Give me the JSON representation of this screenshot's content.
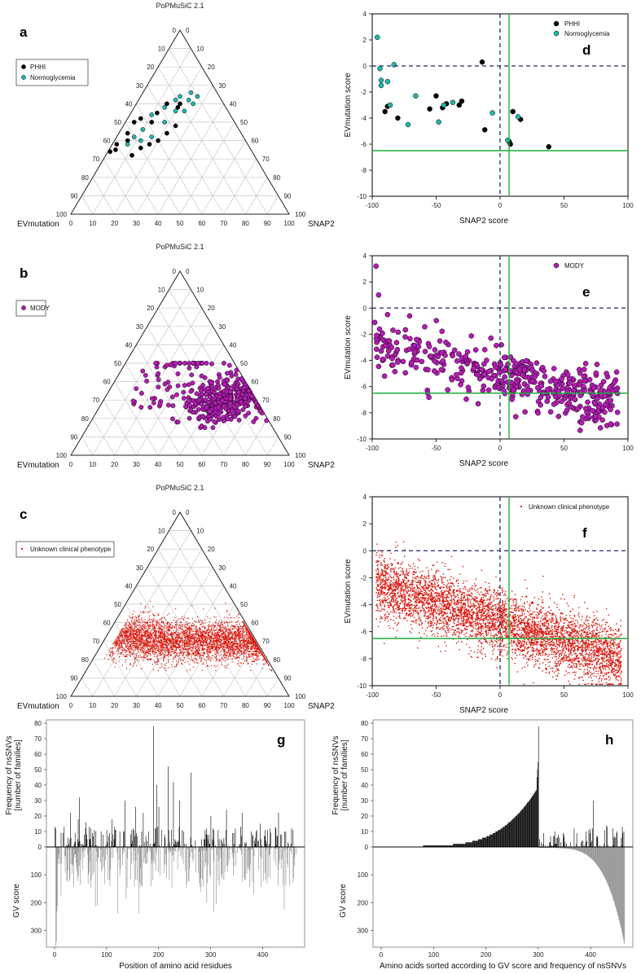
{
  "figure": {
    "panels": [
      "a",
      "b",
      "c",
      "d",
      "e",
      "f",
      "g",
      "h"
    ]
  },
  "colors": {
    "phhi": "#000000",
    "normoglycemia": "#22b5ad",
    "mody": "#b21db2",
    "unknown": "#d9150b",
    "green_line": "#1fae3b",
    "dashed_line": "#1f2a6b",
    "freq_bars": "#000000",
    "gv_bars": "#8c8c8c"
  },
  "chart_data": [
    {
      "id": "a",
      "type": "scatter",
      "subtype": "ternary",
      "panel_letter": "a",
      "title": "PoPMuSiC 2.1",
      "axis_labels": {
        "left": "EVmutation",
        "right": "SNAP2"
      },
      "ticks": [
        "0",
        "10",
        "20",
        "30",
        "40",
        "50",
        "60",
        "70",
        "80",
        "90",
        "100"
      ],
      "legend": [
        {
          "label": "PHHI",
          "color_key": "phhi"
        },
        {
          "label": "Normoglycemia",
          "color_key": "normoglycemia"
        }
      ],
      "series": [
        {
          "name": "PHHI",
          "points": [
            [
              20,
              60,
              20
            ],
            [
              22,
              58,
              20
            ],
            [
              26,
              60,
              14
            ],
            [
              33,
              55,
              12
            ],
            [
              38,
              50,
              12
            ],
            [
              42,
              52,
              6
            ],
            [
              46,
              50,
              4
            ],
            [
              52,
              44,
              4
            ],
            [
              60,
              38,
              2
            ],
            [
              65,
              34,
              1
            ],
            [
              45,
              38,
              17
            ],
            [
              28,
              48,
              24
            ],
            [
              34,
              44,
              22
            ],
            [
              54,
              40,
              6
            ],
            [
              62,
              35,
              3
            ],
            [
              56,
              32,
              12
            ],
            [
              50,
              36,
              14
            ],
            [
              40,
              40,
              20
            ]
          ]
        },
        {
          "name": "Normoglycemia",
          "points": [
            [
              10,
              64,
              26
            ],
            [
              12,
              66,
              22
            ],
            [
              15,
              62,
              23
            ],
            [
              18,
              64,
              18
            ],
            [
              21,
              62,
              17
            ],
            [
              28,
              58,
              14
            ],
            [
              36,
              54,
              10
            ],
            [
              44,
              46,
              10
            ],
            [
              50,
              42,
              8
            ],
            [
              55,
              38,
              7
            ],
            [
              14,
              60,
              26
            ],
            [
              24,
              56,
              20
            ],
            [
              32,
              50,
              18
            ],
            [
              42,
              42,
              16
            ],
            [
              48,
              40,
              12
            ],
            [
              20,
              56,
              24
            ]
          ]
        }
      ]
    },
    {
      "id": "b",
      "type": "scatter",
      "subtype": "ternary",
      "panel_letter": "b",
      "title": "PoPMuSiC 2.1",
      "axis_labels": {
        "left": "EVmutation",
        "right": "SNAP2"
      },
      "ticks": [
        "0",
        "10",
        "20",
        "30",
        "40",
        "50",
        "60",
        "70",
        "80",
        "90",
        "100"
      ],
      "legend": [
        {
          "label": "MODY",
          "color_key": "mody"
        }
      ],
      "generated": {
        "count": 420,
        "seed": 7,
        "mean_right": [
          58,
          30
        ],
        "sd": [
          9,
          6
        ],
        "tail_fraction": 0.18
      }
    },
    {
      "id": "c",
      "type": "scatter",
      "subtype": "ternary",
      "panel_letter": "c",
      "title": "PoPMuSiC 2.1",
      "axis_labels": {
        "left": "EVmutation",
        "right": "SNAP2"
      },
      "ticks": [
        "0",
        "10",
        "20",
        "30",
        "40",
        "50",
        "60",
        "70",
        "80",
        "90",
        "100"
      ],
      "legend": [
        {
          "label": "Unknown clinical phenotype",
          "color_key": "unknown"
        }
      ],
      "generated": {
        "count": 5200,
        "seed": 11
      }
    },
    {
      "id": "d",
      "type": "scatter",
      "panel_letter": "d",
      "xlabel": "SNAP2 score",
      "ylabel": "EVmutation score",
      "xlim": [
        -100,
        100
      ],
      "ylim": [
        -10,
        4
      ],
      "xticks": [
        -100,
        -50,
        0,
        50,
        100
      ],
      "yticks": [
        4,
        2,
        0,
        -2,
        -4,
        -6,
        -8,
        -10
      ],
      "reference_lines": {
        "dashed_x": 0,
        "dashed_y": 0,
        "green_x": 7,
        "green_y": -6.5
      },
      "legend": [
        {
          "label": "PHHI",
          "color_key": "phhi"
        },
        {
          "label": "Normoglycemia",
          "color_key": "normoglycemia"
        }
      ],
      "series": [
        {
          "name": "PHHI",
          "points": [
            [
              -14,
              0.3
            ],
            [
              -88,
              -3.1
            ],
            [
              -90,
              -3.5
            ],
            [
              -80,
              -4.0
            ],
            [
              -55,
              -3.3
            ],
            [
              -50,
              -2.3
            ],
            [
              -45,
              -3.2
            ],
            [
              -42,
              -2.9
            ],
            [
              -32,
              -3.0
            ],
            [
              -30,
              -2.7
            ],
            [
              -12,
              -4.9
            ],
            [
              10,
              -3.5
            ],
            [
              16,
              -4.1
            ],
            [
              7,
              -5.8
            ],
            [
              8,
              -6.0
            ],
            [
              38,
              -6.2
            ]
          ]
        },
        {
          "name": "Normoglycemia",
          "points": [
            [
              -96,
              2.2
            ],
            [
              -94,
              -0.2
            ],
            [
              -83,
              0.1
            ],
            [
              -93,
              -1.1
            ],
            [
              -88,
              -1.2
            ],
            [
              -93,
              -1.5
            ],
            [
              -86,
              -3.0
            ],
            [
              -72,
              -4.5
            ],
            [
              -66,
              -2.3
            ],
            [
              -48,
              -4.3
            ],
            [
              -44,
              -3.0
            ],
            [
              -37,
              -2.8
            ],
            [
              -6,
              -3.6
            ],
            [
              14,
              -3.9
            ],
            [
              6,
              -5.7
            ]
          ]
        }
      ]
    },
    {
      "id": "e",
      "type": "scatter",
      "panel_letter": "e",
      "xlabel": "SNAP2 score",
      "ylabel": "EVmutation score",
      "xlim": [
        -100,
        100
      ],
      "ylim": [
        -10,
        4
      ],
      "xticks": [
        -100,
        -50,
        0,
        50,
        100
      ],
      "yticks": [
        4,
        2,
        0,
        -2,
        -4,
        -6,
        -8,
        -10
      ],
      "reference_lines": {
        "dashed_x": 0,
        "dashed_y": 0,
        "green_x": 7,
        "green_y": -6.5
      },
      "legend": [
        {
          "label": "MODY",
          "color_key": "mody"
        }
      ],
      "generated": {
        "count": 470,
        "seed": 23
      }
    },
    {
      "id": "f",
      "type": "scatter",
      "panel_letter": "f",
      "xlabel": "SNAP2 score",
      "ylabel": "EVmutation score",
      "xlim": [
        -100,
        100
      ],
      "ylim": [
        -10,
        4
      ],
      "xticks": [
        -100,
        -50,
        0,
        50,
        100
      ],
      "yticks": [
        4,
        2,
        0,
        -2,
        -4,
        -6,
        -8,
        -10
      ],
      "reference_lines": {
        "dashed_x": 0,
        "dashed_y": 0,
        "green_x": 7,
        "green_y": -6.5
      },
      "legend": [
        {
          "label": "Unknown clinical phenotype",
          "color_key": "unknown"
        }
      ],
      "generated": {
        "count": 5200,
        "seed": 31
      }
    },
    {
      "id": "g",
      "type": "bar",
      "panel_letter": "g",
      "xlabel": "Position of amino acid residues",
      "ylabel_top": "Frequency of nsSNVs [number of families]",
      "ylabel_top_line1": "Frequency of nsSNVs",
      "ylabel_top_line2": "[number of families]",
      "ylabel_bottom": "GV score",
      "xlim": [
        0,
        465
      ],
      "xticks": [
        0,
        100,
        200,
        300,
        400
      ],
      "top_ylim": [
        0,
        80
      ],
      "top_yticks": [
        0,
        10,
        20,
        30,
        40,
        50,
        60,
        70,
        80
      ],
      "bottom_ylim": [
        0,
        360
      ],
      "bottom_yticks": [
        100,
        200,
        300
      ],
      "highlights": [
        [
          190,
          78
        ],
        [
          218,
          52
        ],
        [
          262,
          48
        ],
        [
          228,
          42
        ],
        [
          196,
          40
        ],
        [
          47,
          32
        ],
        [
          135,
          30
        ],
        [
          430,
          22
        ]
      ],
      "generated": {
        "seed": 41,
        "n": 465
      }
    },
    {
      "id": "h",
      "type": "bar",
      "panel_letter": "h",
      "xlabel": "Amino acids sorted according to GV score and frequency of nsSNVs",
      "ylabel_top": "Frequency of nsSNVs [number of families]",
      "ylabel_top_line1": "Frequency of nsSNVs",
      "ylabel_top_line2": "[number of families]",
      "ylabel_bottom": "GV score",
      "xlim": [
        0,
        465
      ],
      "xticks": [
        0,
        100,
        200,
        300,
        400
      ],
      "top_ylim": [
        0,
        80
      ],
      "top_yticks": [
        0,
        10,
        20,
        30,
        40,
        50,
        60,
        70,
        80
      ],
      "bottom_ylim": [
        0,
        360
      ],
      "bottom_yticks": [
        100,
        200,
        300
      ],
      "sorted_peak": {
        "position": 300,
        "value": 78
      },
      "generated": {
        "seed": 53,
        "n": 465
      }
    }
  ]
}
